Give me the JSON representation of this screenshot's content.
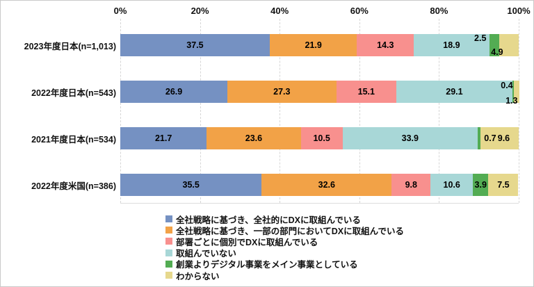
{
  "chart_data": {
    "type": "bar",
    "orientation": "horizontal",
    "stacked": true,
    "title": "",
    "categories": [
      "2023年度日本(n=1,013)",
      "2022年度日本(n=543)",
      "2021年度日本(n=534)",
      "2022年度米国(n=386)"
    ],
    "series": [
      {
        "name": "全社戦略に基づき、全社的にDXに取組んでいる",
        "color": "#7591c2",
        "values": [
          37.5,
          26.9,
          21.7,
          35.5
        ]
      },
      {
        "name": "全社戦略に基づき、一部の部門においてDXに取組んでいる",
        "color": "#f2a247",
        "values": [
          21.9,
          27.3,
          23.6,
          32.6
        ]
      },
      {
        "name": "部署ごとに個別でDXに取組んでいる",
        "color": "#f8908e",
        "values": [
          14.3,
          15.1,
          10.5,
          9.8
        ]
      },
      {
        "name": "取組んでいない",
        "color": "#a8d7d7",
        "values": [
          18.9,
          29.1,
          33.9,
          10.6
        ]
      },
      {
        "name": "創業よりデジタル事業をメイン事業としている",
        "color": "#53ac53",
        "values": [
          2.5,
          0.4,
          0.7,
          3.9
        ]
      },
      {
        "name": "わからない",
        "color": "#e6d88d",
        "values": [
          4.9,
          1.3,
          9.6,
          7.5
        ]
      }
    ],
    "x_axis": {
      "ticks": [
        "0%",
        "20%",
        "40%",
        "60%",
        "80%",
        "100%"
      ],
      "min": 0,
      "max": 100
    },
    "grid": true,
    "legend_position": "bottom",
    "value_label_decimals": 1,
    "label_overrides": {
      "0": {
        "4": {
          "dx": -20,
          "dy": -10
        },
        "5": {
          "dx": -17,
          "dy": 10
        }
      },
      "1": {
        "4": {
          "dx": -9,
          "dy": -9
        },
        "5": {
          "dx": -7,
          "dy": 13
        }
      },
      "2": {
        "4": {
          "dx": 16,
          "dy": 0
        },
        "5": {
          "dx": 6,
          "dy": 0
        }
      }
    }
  }
}
